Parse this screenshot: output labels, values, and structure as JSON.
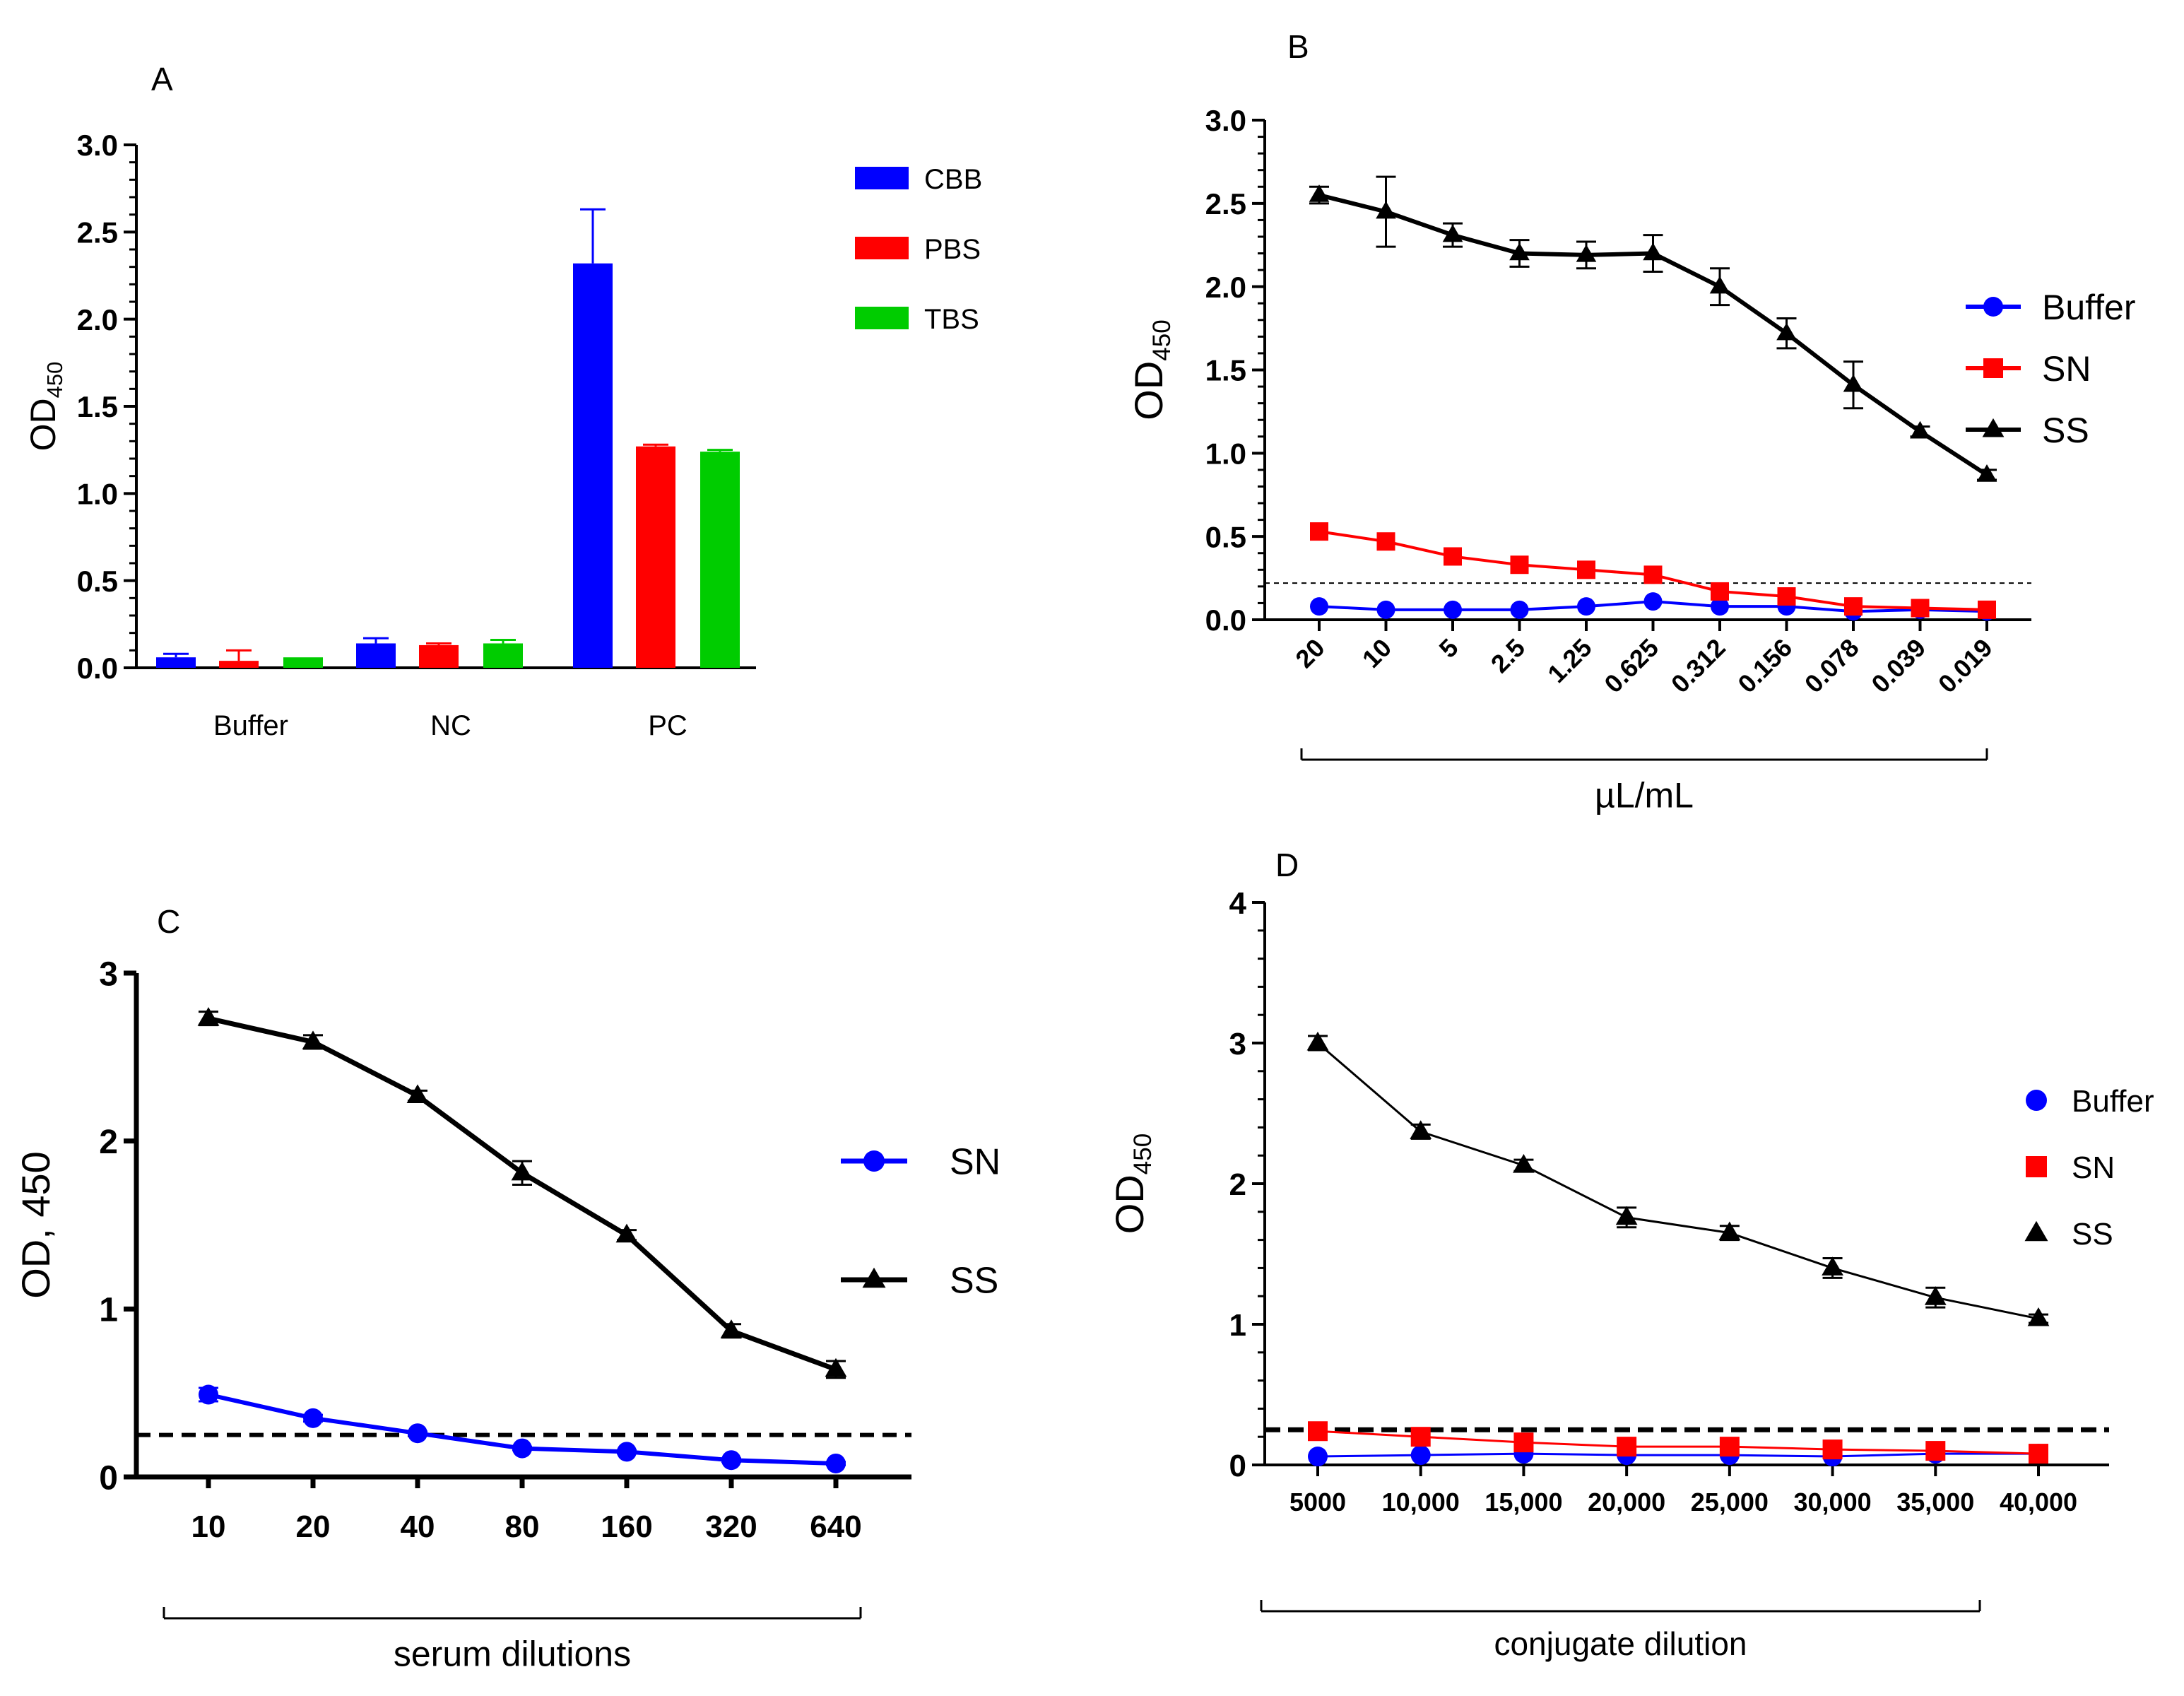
{
  "chart_data": [
    {
      "panel": "A",
      "type": "bar",
      "title": "",
      "xlabel": "",
      "ylabel": "OD",
      "ylabel_sub": "450",
      "ylim": [
        0,
        3.0
      ],
      "yticks": [
        "0.0",
        "0.5",
        "1.0",
        "1.5",
        "2.0",
        "2.5",
        "3.0"
      ],
      "categories": [
        "Buffer",
        "NC",
        "PC"
      ],
      "series": [
        {
          "name": "CBB",
          "color": "#0000ff",
          "values": [
            0.06,
            0.14,
            2.32
          ],
          "errors": [
            0.02,
            0.03,
            0.31
          ]
        },
        {
          "name": "PBS",
          "color": "#ff0000",
          "values": [
            0.04,
            0.13,
            1.27
          ],
          "errors": [
            0.06,
            0.01,
            0.01
          ]
        },
        {
          "name": "TBS",
          "color": "#00cc00",
          "values": [
            0.06,
            0.14,
            1.24
          ],
          "errors": [
            0.0,
            0.02,
            0.01
          ]
        }
      ]
    },
    {
      "panel": "B",
      "type": "line",
      "xlabel": "µL/mL",
      "ylabel": "OD",
      "ylabel_sub": "450",
      "ylim": [
        0,
        3.0
      ],
      "yticks": [
        "0.0",
        "0.5",
        "1.0",
        "1.5",
        "2.0",
        "2.5",
        "3.0"
      ],
      "categories": [
        "20",
        "10",
        "5",
        "2.5",
        "1.25",
        "0.625",
        "0.312",
        "0.156",
        "0.078",
        "0.039",
        "0.019"
      ],
      "cutoff": 0.22,
      "series": [
        {
          "name": "Buffer",
          "color": "#0000ff",
          "marker": "circle",
          "values": [
            0.08,
            0.06,
            0.06,
            0.06,
            0.08,
            0.11,
            0.08,
            0.08,
            0.05,
            0.06,
            0.05
          ],
          "errors": [
            0,
            0,
            0,
            0,
            0,
            0,
            0,
            0,
            0,
            0,
            0
          ]
        },
        {
          "name": "SN",
          "color": "#ff0000",
          "marker": "square",
          "values": [
            0.53,
            0.47,
            0.38,
            0.33,
            0.3,
            0.27,
            0.17,
            0.14,
            0.08,
            0.07,
            0.06
          ],
          "errors": [
            0,
            0,
            0,
            0,
            0,
            0,
            0,
            0,
            0,
            0,
            0
          ]
        },
        {
          "name": "SS",
          "color": "#000000",
          "marker": "triangle",
          "values": [
            2.55,
            2.45,
            2.31,
            2.2,
            2.19,
            2.2,
            2.0,
            1.72,
            1.41,
            1.13,
            0.87
          ],
          "errors": [
            0.05,
            0.21,
            0.07,
            0.08,
            0.08,
            0.11,
            0.11,
            0.09,
            0.14,
            0.03,
            0.03
          ]
        }
      ]
    },
    {
      "panel": "C",
      "type": "line",
      "xlabel": "serum dilutions",
      "ylabel": "OD, 450",
      "ylim": [
        0,
        3
      ],
      "yticks": [
        "0",
        "1",
        "2",
        "3"
      ],
      "categories": [
        "10",
        "20",
        "40",
        "80",
        "160",
        "320",
        "640"
      ],
      "cutoff": 0.25,
      "series": [
        {
          "name": "SN",
          "color": "#0000ff",
          "marker": "circle",
          "values": [
            0.49,
            0.35,
            0.26,
            0.17,
            0.15,
            0.1,
            0.08
          ],
          "errors": [
            0.04,
            0.02,
            0.01,
            0.01,
            0.01,
            0.01,
            0.01
          ]
        },
        {
          "name": "SS",
          "color": "#000000",
          "marker": "triangle",
          "values": [
            2.73,
            2.59,
            2.27,
            1.81,
            1.44,
            0.87,
            0.64
          ],
          "errors": [
            0.04,
            0.04,
            0.03,
            0.07,
            0.03,
            0.04,
            0.05
          ]
        }
      ]
    },
    {
      "panel": "D",
      "type": "line",
      "xlabel": "conjugate dilution",
      "ylabel": "OD",
      "ylabel_sub": "450",
      "ylim": [
        0,
        4
      ],
      "yticks": [
        "0",
        "1",
        "2",
        "3",
        "4"
      ],
      "categories": [
        "5000",
        "10,000",
        "15,000",
        "20,000",
        "25,000",
        "30,000",
        "35,000",
        "40,000"
      ],
      "cutoff": 0.25,
      "series": [
        {
          "name": "Buffer",
          "color": "#0000ff",
          "marker": "circle",
          "values": [
            0.06,
            0.07,
            0.08,
            0.07,
            0.07,
            0.06,
            0.08,
            0.08
          ],
          "errors": [
            0,
            0,
            0,
            0,
            0,
            0,
            0,
            0
          ]
        },
        {
          "name": "SN",
          "color": "#ff0000",
          "marker": "square",
          "values": [
            0.24,
            0.2,
            0.16,
            0.13,
            0.13,
            0.11,
            0.1,
            0.08
          ],
          "errors": [
            0,
            0,
            0,
            0,
            0,
            0,
            0,
            0
          ]
        },
        {
          "name": "SS",
          "color": "#000000",
          "marker": "triangle",
          "values": [
            3.0,
            2.37,
            2.13,
            1.76,
            1.65,
            1.4,
            1.19,
            1.04
          ],
          "errors": [
            0.05,
            0.05,
            0.04,
            0.07,
            0.05,
            0.07,
            0.07,
            0.03
          ]
        }
      ]
    }
  ]
}
